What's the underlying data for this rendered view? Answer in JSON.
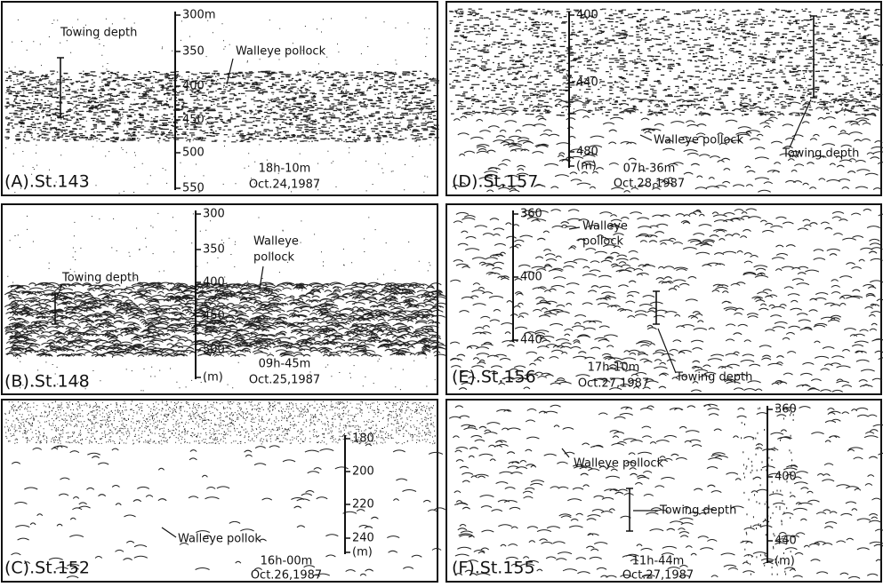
{
  "panels": [
    {
      "label": "(A).St.143",
      "scale": [
        "300m",
        "350",
        "400",
        "450",
        "500",
        "550"
      ],
      "annotations": [
        "Towing depth",
        "Walleye pollock"
      ],
      "time": "18h-10m",
      "date": "Oct.24,1987"
    },
    {
      "label": "(B).St.148",
      "scale": [
        "300",
        "350",
        "400",
        "450",
        "500",
        "(m)"
      ],
      "annotations": [
        "Towing depth",
        "Walleye",
        "pollock"
      ],
      "time": "09h-45m",
      "date": "Oct.25,1987"
    },
    {
      "label": "(C).St.152",
      "scale": [
        "180",
        "200",
        "220",
        "240",
        "(m)"
      ],
      "annotations": [
        "Walleye pollok"
      ],
      "time": "16h-00m",
      "date": "Oct.26,1987"
    },
    {
      "label": "(D).St.157",
      "scale": [
        "400",
        "440",
        "480",
        "(m)"
      ],
      "annotations": [
        "Walleye pollock",
        "Towing depth"
      ],
      "time": "07h-36m",
      "date": "Oct.28,1987"
    },
    {
      "label": "(E).St.156",
      "scale": [
        "360",
        "400",
        "440"
      ],
      "annotations": [
        "Walleye",
        "pollock",
        "Towing depth"
      ],
      "time": "17h-10m",
      "date": "Oct.27,1987"
    },
    {
      "label": "(F).St.155",
      "scale": [
        "360",
        "400",
        "440",
        "(m)"
      ],
      "annotations": [
        "Walleye pollock",
        "Towing depth"
      ],
      "time": "11h-44m",
      "date": "Oct.27,1987"
    }
  ]
}
